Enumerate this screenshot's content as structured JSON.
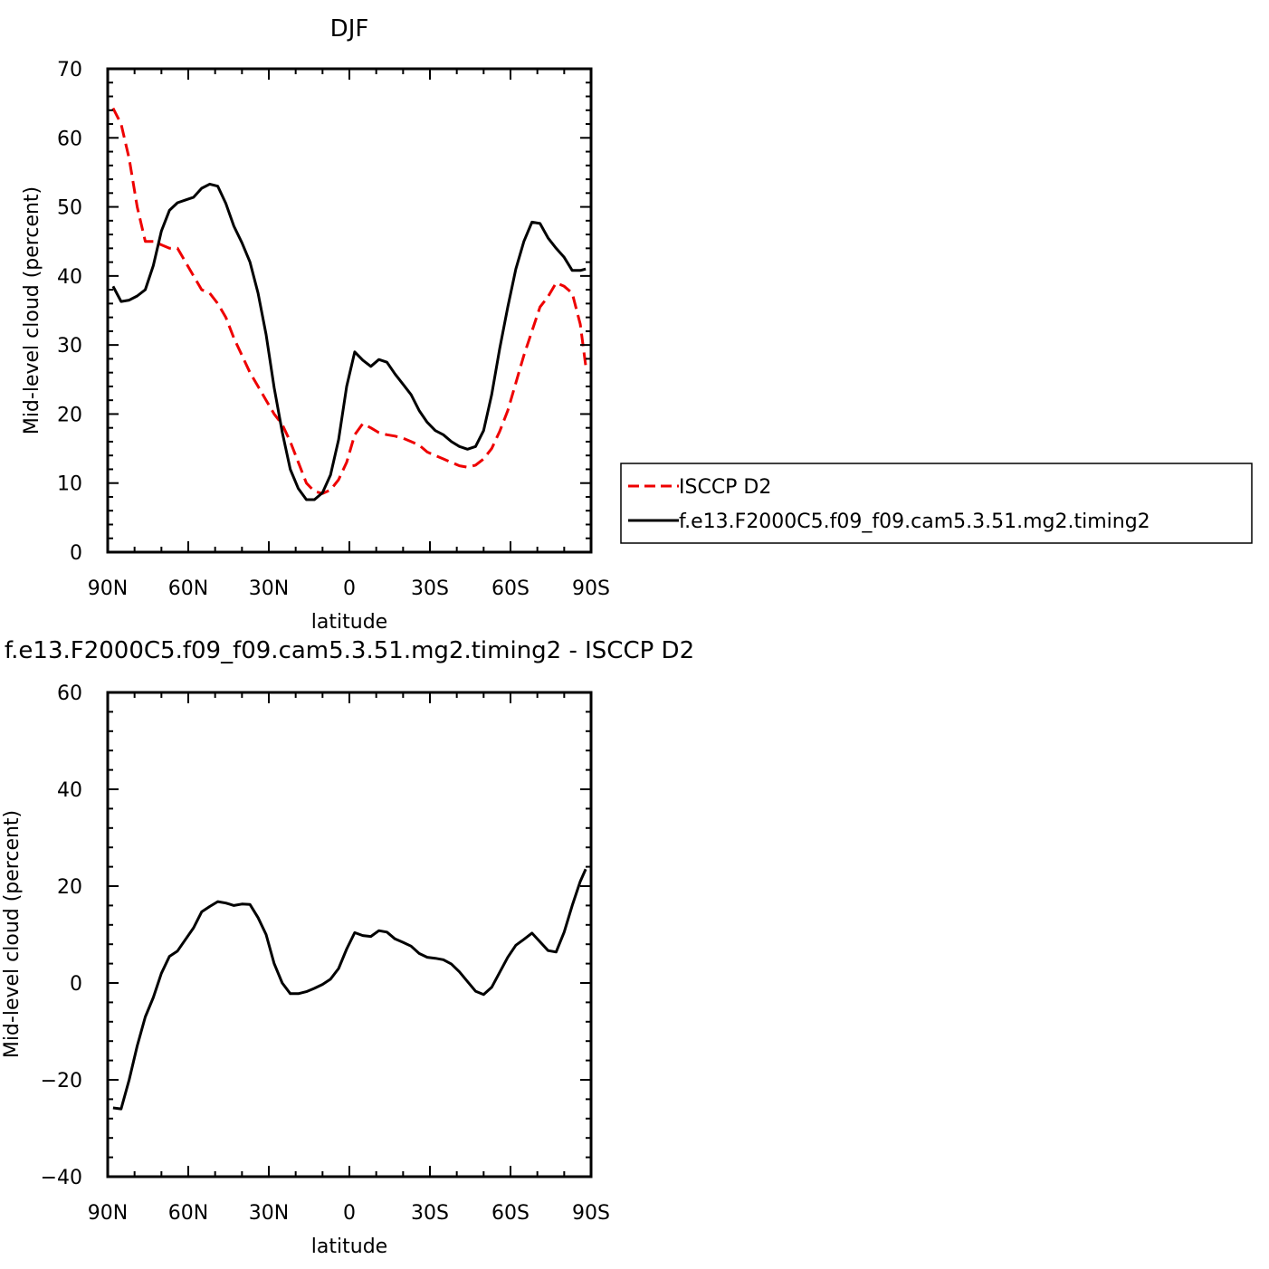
{
  "chart_data": [
    {
      "type": "line",
      "title": "DJF",
      "xlabel": "latitude",
      "ylabel": "Mid-level cloud (percent)",
      "xlim": [
        90,
        -90
      ],
      "ylim": [
        0,
        70
      ],
      "xticks": [
        90,
        60,
        30,
        0,
        -30,
        -60,
        -90
      ],
      "xtick_labels": [
        "90N",
        "60N",
        "30N",
        "0",
        "30S",
        "60S",
        "90S"
      ],
      "yticks": [
        0,
        10,
        20,
        30,
        40,
        50,
        60,
        70
      ],
      "ytick_labels": [
        "0",
        "10",
        "20",
        "30",
        "40",
        "50",
        "60",
        "70"
      ],
      "legend": "right",
      "series": [
        {
          "name": "ISCCP D2",
          "color": "#ee0000",
          "dash": "dashed",
          "x": [
            88,
            85,
            82,
            79,
            76,
            73,
            70,
            67,
            64,
            61,
            58,
            55,
            52,
            49,
            46,
            43,
            40,
            37,
            34,
            31,
            28,
            25,
            22,
            19,
            16,
            13,
            10,
            7,
            4,
            1,
            -2,
            -5,
            -8,
            -11,
            -14,
            -17,
            -20,
            -23,
            -26,
            -29,
            -32,
            -35,
            -38,
            -41,
            -44,
            -47,
            -50,
            -53,
            -56,
            -59,
            -62,
            -65,
            -68,
            -71,
            -74,
            -77,
            -80,
            -83,
            -86,
            -88
          ],
          "values": [
            64.3,
            62,
            57,
            50,
            45,
            45,
            44.5,
            44,
            44,
            42,
            40,
            38,
            37.5,
            36,
            34,
            31,
            28.5,
            26,
            24,
            22,
            20,
            18.5,
            16,
            13,
            10,
            8.8,
            8.5,
            9,
            10.5,
            13,
            17,
            18.6,
            18,
            17.3,
            17,
            16.8,
            16.5,
            16,
            15.5,
            14.5,
            14,
            13.5,
            13,
            12.5,
            12.3,
            12.6,
            13.5,
            15,
            17.5,
            20.5,
            24.5,
            28.5,
            32,
            35.5,
            37,
            39,
            38.5,
            37.5,
            33,
            27
          ]
        },
        {
          "name": "f.e13.F2000C5.f09_f09.cam5.3.51.mg2.timing2",
          "color": "#000000",
          "dash": "solid",
          "x": [
            88,
            85,
            82,
            79,
            76,
            73,
            70,
            67,
            64,
            61,
            58,
            55,
            52,
            49,
            46,
            43,
            40,
            37,
            34,
            31,
            28,
            25,
            22,
            19,
            16,
            13,
            10,
            7,
            4,
            1,
            -2,
            -5,
            -8,
            -11,
            -14,
            -17,
            -20,
            -23,
            -26,
            -29,
            -32,
            -35,
            -38,
            -41,
            -44,
            -47,
            -50,
            -53,
            -56,
            -59,
            -62,
            -65,
            -68,
            -71,
            -74,
            -77,
            -80,
            -83,
            -86,
            -88
          ],
          "values": [
            38.5,
            36.3,
            36.5,
            37.1,
            38,
            41.5,
            46.5,
            49.5,
            50.6,
            51,
            51.4,
            52.7,
            53.3,
            53,
            50.5,
            47.2,
            44.8,
            42,
            37.5,
            31.5,
            23.8,
            17.4,
            12,
            9.2,
            7.6,
            7.6,
            8.6,
            11.2,
            16.3,
            24,
            29,
            27.8,
            26.9,
            27.9,
            27.5,
            25.8,
            24.3,
            22.8,
            20.5,
            18.8,
            17.6,
            17,
            16,
            15.3,
            14.9,
            15.3,
            17.6,
            22.8,
            29.5,
            35.5,
            41,
            45,
            47.8,
            47.6,
            45.5,
            44,
            42.7,
            40.8,
            40.8,
            41
          ]
        }
      ]
    },
    {
      "type": "line",
      "title": "f.e13.F2000C5.f09_f09.cam5.3.51.mg2.timing2 - ISCCP D2",
      "xlabel": "latitude",
      "ylabel": "Mid-level cloud (percent)",
      "xlim": [
        90,
        -90
      ],
      "ylim": [
        -40,
        60
      ],
      "xticks": [
        90,
        60,
        30,
        0,
        -30,
        -60,
        -90
      ],
      "xtick_labels": [
        "90N",
        "60N",
        "30N",
        "0",
        "30S",
        "60S",
        "90S"
      ],
      "yticks": [
        -40,
        -20,
        0,
        20,
        40,
        60
      ],
      "ytick_labels": [
        "−40",
        "−20",
        "0",
        "20",
        "40",
        "60"
      ],
      "series": [
        {
          "color": "#000000",
          "dash": "solid",
          "x": [
            88,
            85,
            82,
            79,
            76,
            73,
            70,
            67,
            64,
            61,
            58,
            55,
            52,
            49,
            46,
            43,
            40,
            37,
            34,
            31,
            28,
            25,
            22,
            19,
            16,
            13,
            10,
            7,
            4,
            1,
            -2,
            -5,
            -8,
            -11,
            -14,
            -17,
            -20,
            -23,
            -26,
            -29,
            -32,
            -35,
            -38,
            -41,
            -44,
            -47,
            -50,
            -53,
            -56,
            -59,
            -62,
            -65,
            -68,
            -71,
            -74,
            -77,
            -80,
            -83,
            -86,
            -88
          ],
          "values": [
            -25.8,
            -26,
            -20,
            -13,
            -7,
            -3,
            2,
            5.5,
            6.6,
            9,
            11.4,
            14.7,
            15.8,
            16.8,
            16.5,
            16,
            16.3,
            16.2,
            13.5,
            10,
            4,
            0,
            -2.2,
            -2.2,
            -1.8,
            -1.1,
            -0.3,
            0.8,
            3,
            7,
            10.4,
            9.8,
            9.6,
            10.8,
            10.5,
            9.1,
            8.4,
            7.6,
            6.1,
            5.3,
            5.1,
            4.8,
            3.9,
            2.3,
            0.3,
            -1.7,
            -2.4,
            -0.9,
            2.2,
            5.3,
            7.8,
            9,
            10.3,
            8.5,
            6.7,
            6.4,
            10.5,
            16,
            21,
            23.5
          ]
        }
      ]
    }
  ]
}
